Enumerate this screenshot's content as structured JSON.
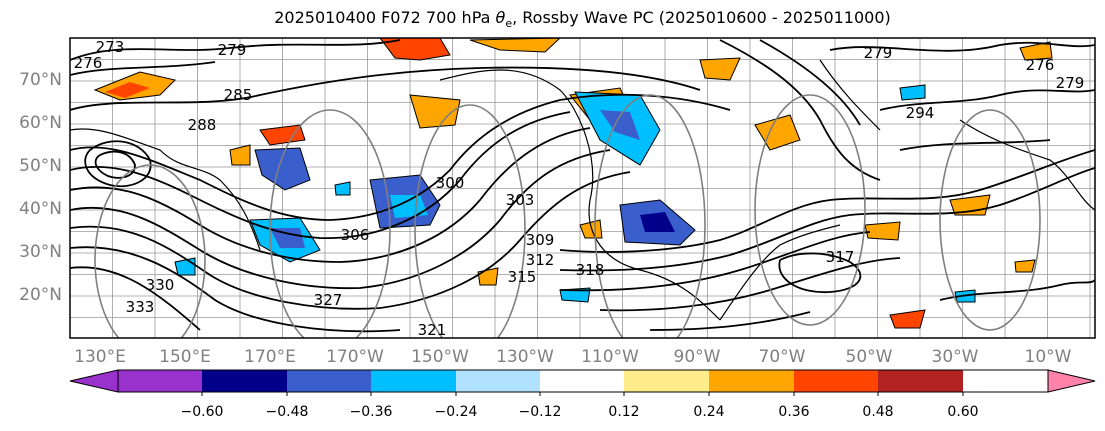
{
  "title": {
    "prefix": "2025010400 F072 700 hPa ",
    "symbol": "θ",
    "subscript": "e",
    "suffix": ", Rossby Wave PC (2025010600 - 2025011000)"
  },
  "map": {
    "lat_labels": [
      "20°N",
      "30°N",
      "40°N",
      "50°N",
      "60°N",
      "70°N"
    ],
    "lon_labels": [
      "130°E",
      "150°E",
      "170°E",
      "170°W",
      "150°W",
      "130°W",
      "110°W",
      "90°W",
      "70°W",
      "50°W",
      "30°W",
      "10°W"
    ],
    "contour_labels": [
      "273",
      "276",
      "279",
      "285",
      "288",
      "294",
      "300",
      "303",
      "306",
      "309",
      "312",
      "315",
      "318",
      "321",
      "327",
      "330",
      "333",
      "279",
      "276",
      "279",
      "317"
    ]
  },
  "colorbar": {
    "colors": [
      "#9932cc",
      "#00008b",
      "#3a5fcd",
      "#00bfff",
      "#b0e2ff",
      "#ffffff",
      "#ffec8b",
      "#ffa500",
      "#ff4500",
      "#b22222",
      "#ff82ab"
    ],
    "tick_labels": [
      "−0.60",
      "−0.48",
      "−0.36",
      "−0.24",
      "−0.12",
      "0.12",
      "0.24",
      "0.36",
      "0.48",
      "0.60"
    ]
  }
}
